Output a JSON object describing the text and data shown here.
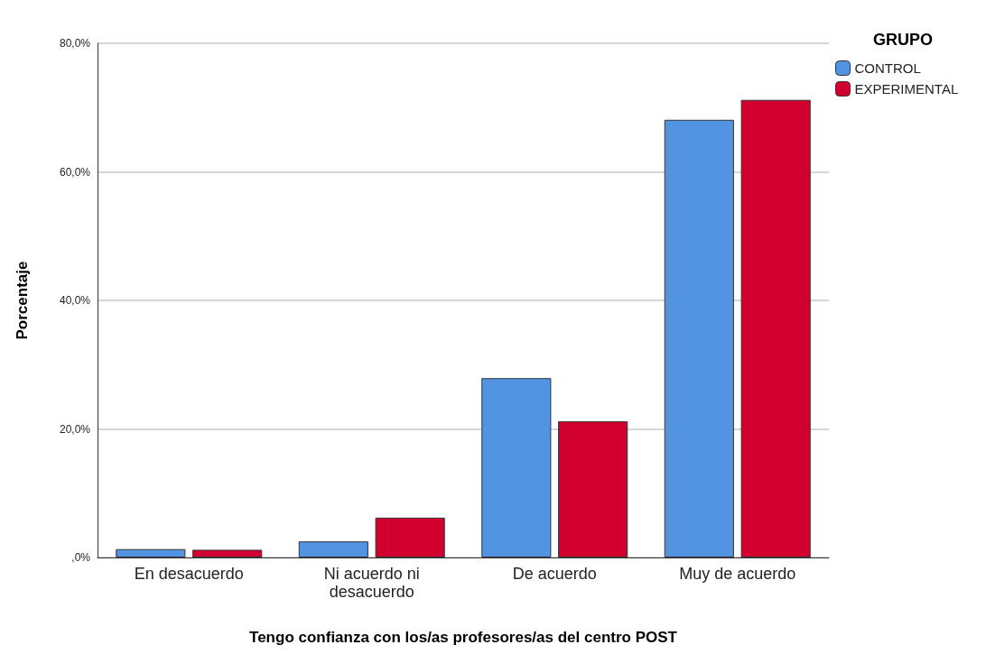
{
  "chart_data": {
    "type": "bar",
    "xlabel": "Tengo confianza con los/as profesores/as del centro POST",
    "ylabel": "Porcentaje",
    "legend_title": "GRUPO",
    "categories": [
      "En desacuerdo",
      "Ni acuerdo ni\ndesacuerdo",
      "De acuerdo",
      "Muy de acuerdo"
    ],
    "series": [
      {
        "name": "CONTROL",
        "color": "#5294e2",
        "values": [
          1.3,
          2.5,
          27.9,
          68.1
        ]
      },
      {
        "name": "EXPERIMENTAL",
        "color": "#d2002e",
        "values": [
          1.2,
          6.2,
          21.2,
          71.2
        ]
      }
    ],
    "ylim": [
      0,
      80
    ],
    "yticks": [
      {
        "value": 0,
        "label": ",0%"
      },
      {
        "value": 20,
        "label": "20,0%"
      },
      {
        "value": 40,
        "label": "40,0%"
      },
      {
        "value": 60,
        "label": "60,0%"
      },
      {
        "value": 80,
        "label": "80,0%"
      }
    ],
    "grid": "y",
    "legend": "top right"
  }
}
